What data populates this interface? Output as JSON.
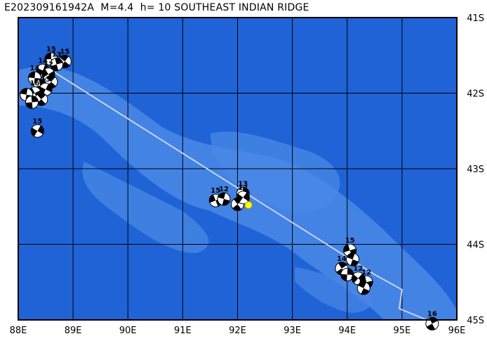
{
  "title": "E202309161942A  M=4.4  h= 10 SOUTHEAST INDIAN RIDGE",
  "map": {
    "lon_range": [
      88,
      96
    ],
    "lat_range": [
      -45,
      -41
    ],
    "lon_labels": [
      "88E",
      "89E",
      "90E",
      "91E",
      "92E",
      "93E",
      "94E",
      "95E",
      "96E"
    ],
    "lat_labels": [
      "41S",
      "42S",
      "43S",
      "44S",
      "45S"
    ],
    "colors": {
      "deep": "#1f63d6",
      "shallow": "#4a88e6",
      "grid": "#000000",
      "ridge": "#c8d2f0",
      "event": "#ffff00"
    },
    "ridge_path": [
      [
        88.5,
        -41.65
      ],
      [
        94.5,
        -44.4
      ],
      [
        95.0,
        -44.6
      ],
      [
        94.95,
        -44.85
      ],
      [
        95.45,
        -45.0
      ]
    ],
    "main_event": {
      "lon": 92.2,
      "lat": -43.48
    },
    "mechanisms": [
      {
        "lon": 88.6,
        "lat": -41.55,
        "label": "15"
      },
      {
        "lon": 88.85,
        "lat": -41.58,
        "label": "15"
      },
      {
        "lon": 88.7,
        "lat": -41.62,
        "label": "13"
      },
      {
        "lon": 88.45,
        "lat": -41.7,
        "label": "14"
      },
      {
        "lon": 88.55,
        "lat": -41.75,
        "label": "12"
      },
      {
        "lon": 88.3,
        "lat": -41.8,
        "label": "14"
      },
      {
        "lon": 88.6,
        "lat": -41.85,
        "label": ""
      },
      {
        "lon": 88.4,
        "lat": -41.9,
        "label": ""
      },
      {
        "lon": 88.5,
        "lat": -41.95,
        "label": "13"
      },
      {
        "lon": 88.3,
        "lat": -42.0,
        "label": "16"
      },
      {
        "lon": 88.15,
        "lat": -42.02,
        "label": ""
      },
      {
        "lon": 88.42,
        "lat": -42.08,
        "label": ""
      },
      {
        "lon": 88.25,
        "lat": -42.12,
        "label": ""
      },
      {
        "lon": 88.35,
        "lat": -42.5,
        "label": "15"
      },
      {
        "lon": 91.6,
        "lat": -43.42,
        "label": "15"
      },
      {
        "lon": 91.75,
        "lat": -43.4,
        "label": "12"
      },
      {
        "lon": 92.0,
        "lat": -43.47,
        "label": ""
      },
      {
        "lon": 92.1,
        "lat": -43.33,
        "label": "13"
      },
      {
        "lon": 92.1,
        "lat": -43.38,
        "label": "12"
      },
      {
        "lon": 94.05,
        "lat": -44.08,
        "label": "15"
      },
      {
        "lon": 94.1,
        "lat": -44.2,
        "label": ""
      },
      {
        "lon": 93.9,
        "lat": -44.32,
        "label": "14"
      },
      {
        "lon": 94.0,
        "lat": -44.4,
        "label": ""
      },
      {
        "lon": 94.2,
        "lat": -44.45,
        "label": "12"
      },
      {
        "lon": 94.35,
        "lat": -44.5,
        "label": "12"
      },
      {
        "lon": 94.3,
        "lat": -44.58,
        "label": ""
      },
      {
        "lon": 95.55,
        "lat": -45.05,
        "label": "16"
      }
    ]
  }
}
